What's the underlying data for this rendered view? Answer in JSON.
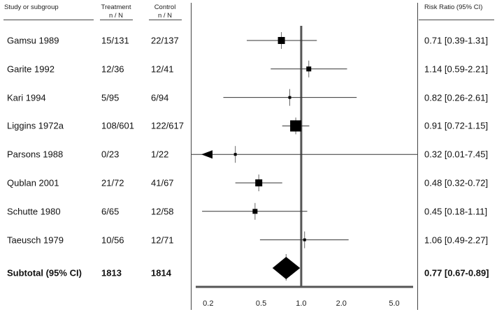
{
  "header": {
    "study": "Study or subgroup",
    "treatment": "Treatment",
    "treatment_sub": "n / N",
    "control": "Control",
    "control_sub": "n / N",
    "risk_ratio": "Risk Ratio (95% CI)"
  },
  "rows": [
    {
      "study": "Gamsu 1989",
      "treatment": "15/131",
      "control": "22/137",
      "rr_text": "0.71 [0.39-1.31]"
    },
    {
      "study": "Garite 1992",
      "treatment": "12/36",
      "control": "12/41",
      "rr_text": "1.14 [0.59-2.21]"
    },
    {
      "study": "Kari 1994",
      "treatment": "5/95",
      "control": "6/94",
      "rr_text": "0.82 [0.26-2.61]"
    },
    {
      "study": "Liggins 1972a",
      "treatment": "108/601",
      "control": "122/617",
      "rr_text": "0.91 [0.72-1.15]"
    },
    {
      "study": "Parsons 1988",
      "treatment": "0/23",
      "control": "1/22",
      "rr_text": "0.32 [0.01-7.45]"
    },
    {
      "study": "Qublan 2001",
      "treatment": "21/72",
      "control": "41/67",
      "rr_text": "0.48 [0.32-0.72]"
    },
    {
      "study": "Schutte 1980",
      "treatment": "6/65",
      "control": "12/58",
      "rr_text": "0.45 [0.18-1.11]"
    },
    {
      "study": "Taeusch 1979",
      "treatment": "10/56",
      "control": "12/71",
      "rr_text": "1.06 [0.49-2.27]"
    }
  ],
  "subtotal": {
    "study": "Subtotal (95%  CI)",
    "treatment": "1813",
    "control": "1814",
    "rr_text": "0.77 [0.67-0.89]"
  },
  "colors": {
    "marker": "#000000",
    "line": "#333333",
    "axis": "#555555"
  },
  "chart_data": {
    "type": "forest",
    "x_scale": "log",
    "xlim": [
      0.15,
      7.45
    ],
    "ticks": [
      0.2,
      0.5,
      1.0,
      2.0,
      5.0
    ],
    "tick_labels": [
      "0.2",
      "0.5",
      "1.0",
      "2.0",
      "5.0"
    ],
    "reference_line": 1.0,
    "studies": [
      {
        "name": "Gamsu 1989",
        "rr": 0.71,
        "lo": 0.39,
        "hi": 1.31,
        "weight": 3
      },
      {
        "name": "Garite 1992",
        "rr": 1.14,
        "lo": 0.59,
        "hi": 2.21,
        "weight": 2
      },
      {
        "name": "Kari 1994",
        "rr": 0.82,
        "lo": 0.26,
        "hi": 2.61,
        "weight": 1
      },
      {
        "name": "Liggins 1972a",
        "rr": 0.91,
        "lo": 0.72,
        "hi": 1.15,
        "weight": 4
      },
      {
        "name": "Parsons 1988",
        "rr": 0.32,
        "lo": 0.01,
        "hi": 7.45,
        "weight": 1
      },
      {
        "name": "Qublan 2001",
        "rr": 0.48,
        "lo": 0.32,
        "hi": 0.72,
        "weight": 3
      },
      {
        "name": "Schutte 1980",
        "rr": 0.45,
        "lo": 0.18,
        "hi": 1.11,
        "weight": 2
      },
      {
        "name": "Taeusch 1979",
        "rr": 1.06,
        "lo": 0.49,
        "hi": 2.27,
        "weight": 1
      }
    ],
    "subtotal": {
      "name": "Subtotal (95%  CI)",
      "rr": 0.77,
      "lo": 0.67,
      "hi": 0.89
    }
  }
}
